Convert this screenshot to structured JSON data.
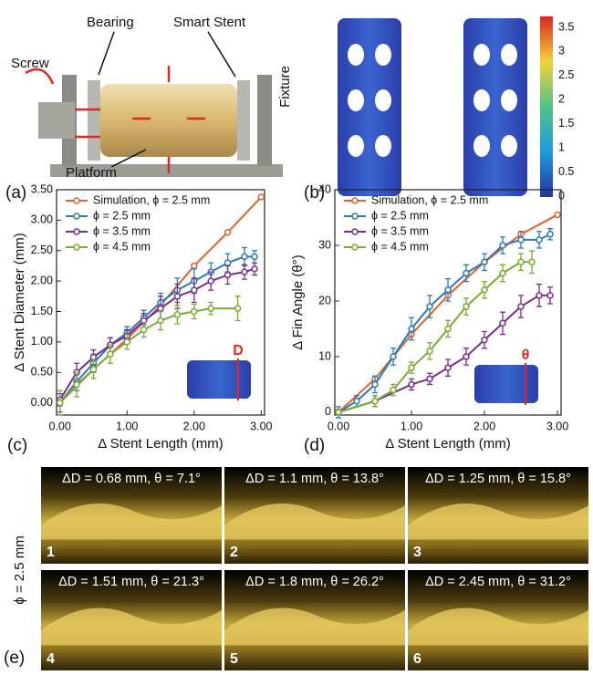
{
  "panels": {
    "a": {
      "label": "(a)",
      "callouts": [
        "Screw",
        "Bearing",
        "Smart Stent",
        "Fixture",
        "Platform"
      ]
    },
    "b": {
      "label": "(b)",
      "colorbar_ticks": [
        0,
        0.5,
        1,
        1.5,
        2,
        2.5,
        3,
        3.5
      ]
    },
    "e": {
      "label": "(e)",
      "side_label": "ϕ = 2.5 mm",
      "frames": [
        {
          "number": "1",
          "caption": "ΔD = 0.68 mm, θ = 7.1°"
        },
        {
          "number": "2",
          "caption": "ΔD = 1.1 mm, θ = 13.8°"
        },
        {
          "number": "3",
          "caption": "ΔD = 1.25 mm, θ = 15.8°"
        },
        {
          "number": "4",
          "caption": "ΔD = 1.51 mm, θ = 21.3°"
        },
        {
          "number": "5",
          "caption": "ΔD = 1.8 mm, θ = 26.2°"
        },
        {
          "number": "6",
          "caption": "ΔD = 2.45 mm, θ = 31.2°"
        }
      ]
    }
  },
  "chart_data": [
    {
      "type": "line",
      "panel_label": "(c)",
      "x_label": "Δ Stent Length (mm)",
      "y_label": "Δ Stent Diameter (mm)",
      "inset_label": "D",
      "legend": "upper left",
      "xlim": [
        -0.05,
        3.05
      ],
      "ylim": [
        -0.2,
        3.5
      ],
      "xticks": [
        {
          "value": 0,
          "label": "0.00"
        },
        {
          "value": 1,
          "label": "1.00"
        },
        {
          "value": 2,
          "label": "2.00"
        },
        {
          "value": 3,
          "label": "3.00"
        }
      ],
      "yticks": [
        {
          "value": 0,
          "label": "0.00"
        },
        {
          "value": 0.5,
          "label": "0.50"
        },
        {
          "value": 1,
          "label": "1.00"
        },
        {
          "value": 1.5,
          "label": "1.50"
        },
        {
          "value": 2,
          "label": "2.00"
        },
        {
          "value": 2.5,
          "label": "2.50"
        },
        {
          "value": 3,
          "label": "3.00"
        },
        {
          "value": 3.5,
          "label": "3.50"
        }
      ],
      "series": [
        {
          "name": "Simulation, ϕ = 2.5 mm",
          "color": "#e0612c",
          "x": [
            0,
            0.5,
            1,
            1.5,
            2,
            2.5,
            3
          ],
          "values": [
            0,
            0.55,
            1.05,
            1.6,
            2.25,
            2.8,
            3.38
          ]
        },
        {
          "name": "ϕ = 2.5 mm",
          "color": "#2a7ab9",
          "x": [
            0,
            0.25,
            0.5,
            0.75,
            1,
            1.25,
            1.5,
            1.75,
            2,
            2.25,
            2.5,
            2.75,
            2.9
          ],
          "values": [
            0,
            0.35,
            0.65,
            0.95,
            1.15,
            1.4,
            1.65,
            1.85,
            2.0,
            2.15,
            2.3,
            2.4,
            2.4
          ],
          "errors": [
            0.15,
            0.15,
            0.15,
            0.12,
            0.1,
            0.12,
            0.15,
            0.2,
            0.2,
            0.15,
            0.15,
            0.15,
            0.1
          ]
        },
        {
          "name": "ϕ = 3.5 mm",
          "color": "#7b2d8e",
          "x": [
            0,
            0.25,
            0.5,
            0.75,
            1,
            1.25,
            1.5,
            1.75,
            2,
            2.25,
            2.5,
            2.75,
            2.9
          ],
          "values": [
            0.05,
            0.5,
            0.75,
            0.95,
            1.1,
            1.35,
            1.55,
            1.75,
            1.85,
            2.0,
            2.1,
            2.15,
            2.2
          ],
          "errors": [
            0.1,
            0.15,
            0.12,
            0.12,
            0.1,
            0.12,
            0.2,
            0.2,
            0.2,
            0.15,
            0.15,
            0.12,
            0.1
          ]
        },
        {
          "name": "ϕ = 4.5 mm",
          "color": "#77ac30",
          "x": [
            0,
            0.25,
            0.5,
            0.75,
            1,
            1.25,
            1.5,
            1.75,
            2,
            2.25,
            2.65
          ],
          "values": [
            0,
            0.3,
            0.55,
            0.8,
            1.0,
            1.2,
            1.35,
            1.45,
            1.5,
            1.55,
            1.55
          ],
          "errors": [
            0.2,
            0.2,
            0.15,
            0.15,
            0.12,
            0.12,
            0.15,
            0.15,
            0.12,
            0.1,
            0.2
          ]
        }
      ]
    },
    {
      "type": "line",
      "panel_label": "(d)",
      "x_label": "Δ Stent Length (mm)",
      "y_label": "Δ Fin Angle (θ°)",
      "inset_label": "θ",
      "legend": "upper left",
      "xlim": [
        -0.05,
        3.05
      ],
      "ylim": [
        -0.5,
        40
      ],
      "xticks": [
        {
          "value": 0,
          "label": "0.00"
        },
        {
          "value": 1,
          "label": "1.00"
        },
        {
          "value": 2,
          "label": "2.00"
        },
        {
          "value": 3,
          "label": "3.00"
        }
      ],
      "yticks": [
        0,
        10,
        20,
        30,
        40
      ],
      "series": [
        {
          "name": "Simulation, ϕ = 2.5 mm",
          "color": "#e0612c",
          "x": [
            0,
            0.5,
            1,
            1.5,
            2,
            2.5,
            3
          ],
          "values": [
            0,
            6,
            14,
            21,
            27,
            32,
            35.5
          ]
        },
        {
          "name": "ϕ = 2.5 mm",
          "color": "#2a7ab9",
          "x": [
            0,
            0.25,
            0.5,
            0.75,
            1,
            1.25,
            1.5,
            1.75,
            2,
            2.25,
            2.5,
            2.75,
            2.9
          ],
          "values": [
            0,
            2,
            5,
            10,
            15,
            19,
            22,
            25,
            27,
            30,
            31,
            31,
            32
          ],
          "errors": [
            1,
            1,
            1.5,
            1.5,
            2,
            2,
            2,
            1.5,
            1.5,
            1.5,
            1.5,
            1.5,
            1
          ]
        },
        {
          "name": "ϕ = 3.5 mm",
          "color": "#7b2d8e",
          "x": [
            0,
            0.5,
            1,
            1.25,
            1.5,
            1.75,
            2,
            2.25,
            2.5,
            2.75,
            2.9
          ],
          "values": [
            0,
            2,
            5,
            6,
            8,
            10,
            13,
            16,
            19,
            21,
            21
          ],
          "errors": [
            0.5,
            1,
            1,
            1,
            1.5,
            1.5,
            1.5,
            2,
            2,
            2,
            1.5
          ]
        },
        {
          "name": "ϕ = 4.5 mm",
          "color": "#77ac30",
          "x": [
            0,
            0.5,
            0.75,
            1,
            1.25,
            1.5,
            1.75,
            2,
            2.25,
            2.5,
            2.65
          ],
          "values": [
            0,
            2,
            4,
            8,
            11,
            15,
            19,
            22,
            25,
            27,
            27
          ],
          "errors": [
            0.5,
            1,
            1,
            1,
            1.5,
            1.5,
            1.5,
            1.5,
            1.5,
            1.5,
            2
          ]
        }
      ]
    }
  ]
}
